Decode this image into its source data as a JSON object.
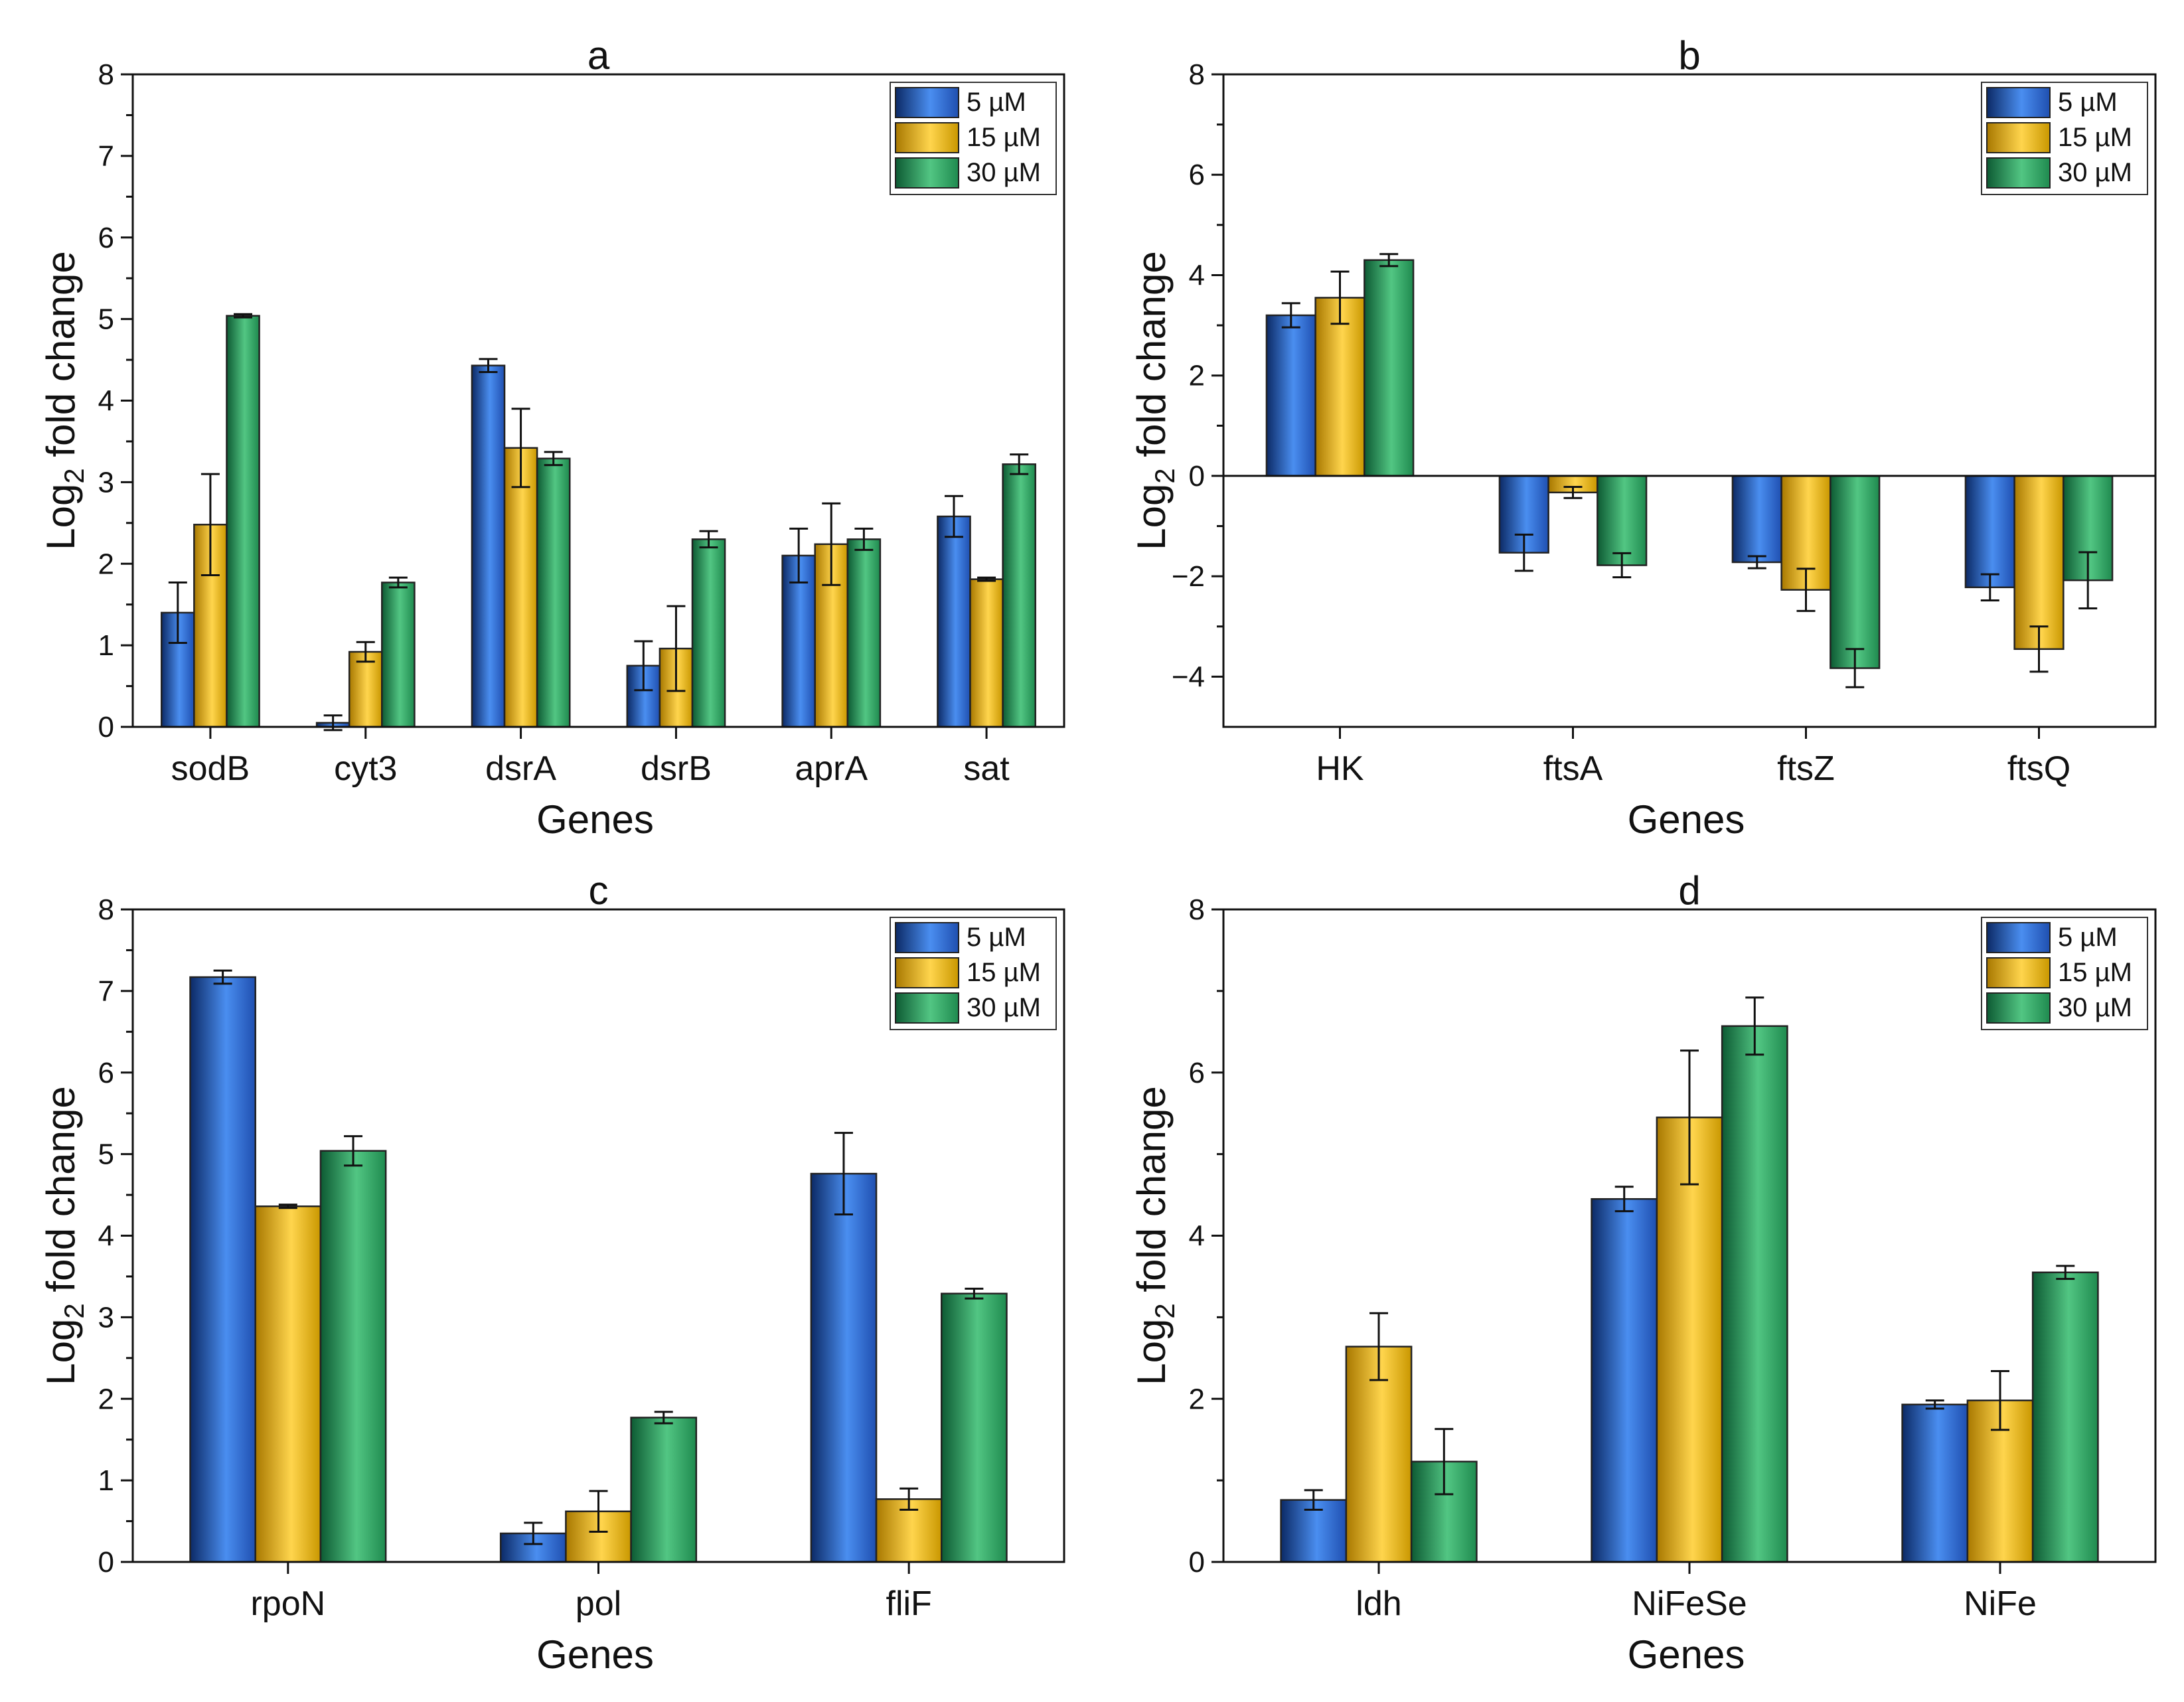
{
  "chart_data": [
    {
      "panel": "a",
      "type": "bar",
      "title": "a",
      "xlabel": "Genes",
      "ylabel_main": "Log",
      "ylabel_sub": "2",
      "ylabel_rest": " fold change",
      "categories": [
        "sodB",
        "cyt3",
        "dsrA",
        "dsrB",
        "aprA",
        "sat"
      ],
      "ylim": [
        0,
        8
      ],
      "yticks": [
        0,
        1,
        2,
        3,
        4,
        5,
        6,
        7,
        8
      ],
      "ytick_labels": [
        "0",
        "1",
        "2",
        "3",
        "4",
        "5",
        "6",
        "7",
        "8"
      ],
      "series": [
        {
          "name": "5 µM",
          "values": [
            1.4,
            0.05,
            4.43,
            0.75,
            2.1,
            2.58
          ],
          "errors": [
            0.37,
            0.09,
            0.08,
            0.3,
            0.33,
            0.25
          ]
        },
        {
          "name": "15 µM",
          "values": [
            2.48,
            0.92,
            3.42,
            0.96,
            2.24,
            1.81
          ],
          "errors": [
            0.62,
            0.12,
            0.48,
            0.52,
            0.5,
            0.02
          ]
        },
        {
          "name": "30 µM",
          "values": [
            5.04,
            1.77,
            3.29,
            2.3,
            2.3,
            3.22
          ],
          "errors": [
            0.02,
            0.06,
            0.08,
            0.1,
            0.13,
            0.12
          ]
        }
      ]
    },
    {
      "panel": "b",
      "type": "bar",
      "title": "b",
      "xlabel": "Genes",
      "ylabel_main": "Log",
      "ylabel_sub": "2",
      "ylabel_rest": " fold change",
      "categories": [
        "HK",
        "ftsA",
        "ftsZ",
        "ftsQ"
      ],
      "ylim": [
        -5,
        8
      ],
      "yticks": [
        -4,
        -2,
        0,
        2,
        4,
        6,
        8
      ],
      "ytick_labels": [
        "−4",
        "−2",
        "0",
        "2",
        "4",
        "6",
        "8"
      ],
      "series": [
        {
          "name": "5 µM",
          "values": [
            3.2,
            -1.53,
            -1.72,
            -2.22
          ],
          "errors": [
            0.24,
            0.36,
            0.12,
            0.26
          ]
        },
        {
          "name": "15 µM",
          "values": [
            3.55,
            -0.33,
            -2.27,
            -3.45
          ],
          "errors": [
            0.52,
            0.11,
            0.42,
            0.45
          ]
        },
        {
          "name": "30 µM",
          "values": [
            4.3,
            -1.78,
            -3.83,
            -2.08
          ],
          "errors": [
            0.12,
            0.24,
            0.38,
            0.56
          ]
        }
      ]
    },
    {
      "panel": "c",
      "type": "bar",
      "title": "c",
      "xlabel": "Genes",
      "ylabel_main": "Log",
      "ylabel_sub": "2",
      "ylabel_rest": " fold change",
      "categories": [
        "rpoN",
        "pol",
        "fliF"
      ],
      "ylim": [
        0,
        8
      ],
      "yticks": [
        0,
        1,
        2,
        3,
        4,
        5,
        6,
        7,
        8
      ],
      "ytick_labels": [
        "0",
        "1",
        "2",
        "3",
        "4",
        "5",
        "6",
        "7",
        "8"
      ],
      "series": [
        {
          "name": "5 µM",
          "values": [
            7.17,
            0.35,
            4.76
          ],
          "errors": [
            0.08,
            0.13,
            0.5
          ]
        },
        {
          "name": "15 µM",
          "values": [
            4.36,
            0.62,
            0.77
          ],
          "errors": [
            0.02,
            0.25,
            0.13
          ]
        },
        {
          "name": "30 µM",
          "values": [
            5.04,
            1.77,
            3.29
          ],
          "errors": [
            0.18,
            0.07,
            0.06
          ]
        }
      ]
    },
    {
      "panel": "d",
      "type": "bar",
      "title": "d",
      "xlabel": "Genes",
      "ylabel_main": "Log",
      "ylabel_sub": "2",
      "ylabel_rest": " fold change",
      "categories": [
        "ldh",
        "NiFeSe",
        "NiFe"
      ],
      "ylim": [
        0,
        8
      ],
      "yticks": [
        0,
        2,
        4,
        6,
        8
      ],
      "ytick_labels": [
        "0",
        "2",
        "4",
        "6",
        "8"
      ],
      "series": [
        {
          "name": "5 µM",
          "values": [
            0.76,
            4.45,
            1.93
          ],
          "errors": [
            0.12,
            0.15,
            0.05
          ]
        },
        {
          "name": "15 µM",
          "values": [
            2.64,
            5.45,
            1.98
          ],
          "errors": [
            0.41,
            0.82,
            0.36
          ]
        },
        {
          "name": "30 µM",
          "values": [
            1.23,
            6.57,
            3.55
          ],
          "errors": [
            0.4,
            0.35,
            0.08
          ]
        }
      ]
    }
  ],
  "colors": {
    "5 µM": "#3f7fe0",
    "15 µM": "#f2c233",
    "30 µM": "#3fb66f"
  }
}
